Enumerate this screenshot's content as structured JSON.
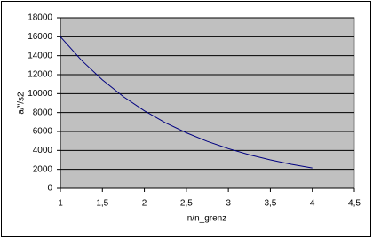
{
  "chart_data": {
    "type": "line",
    "x": [
      1,
      1.25,
      1.5,
      1.75,
      2,
      2.25,
      2.5,
      2.75,
      3,
      3.25,
      3.5,
      3.75,
      4
    ],
    "values": [
      16000,
      13530,
      11450,
      9680,
      8190,
      6920,
      5860,
      4950,
      4190,
      3540,
      3000,
      2530,
      2140
    ],
    "color": "#000080",
    "x_label": "n/n_grenz",
    "y_label": "a/\"/s2",
    "xlim": [
      1,
      4.5
    ],
    "xticks": [
      1,
      {
        "value": 1.5,
        "label": "1,5"
      },
      2,
      {
        "value": 2.5,
        "label": "2,5"
      },
      3,
      {
        "value": 3.5,
        "label": "3,5"
      },
      4,
      {
        "value": 4.5,
        "label": "4,5"
      }
    ],
    "ylim": [
      0,
      18000
    ],
    "yticks": [
      0,
      2000,
      4000,
      6000,
      8000,
      10000,
      12000,
      14000,
      16000,
      18000
    ],
    "grid": true,
    "plot_background": "#c0c0c0"
  }
}
